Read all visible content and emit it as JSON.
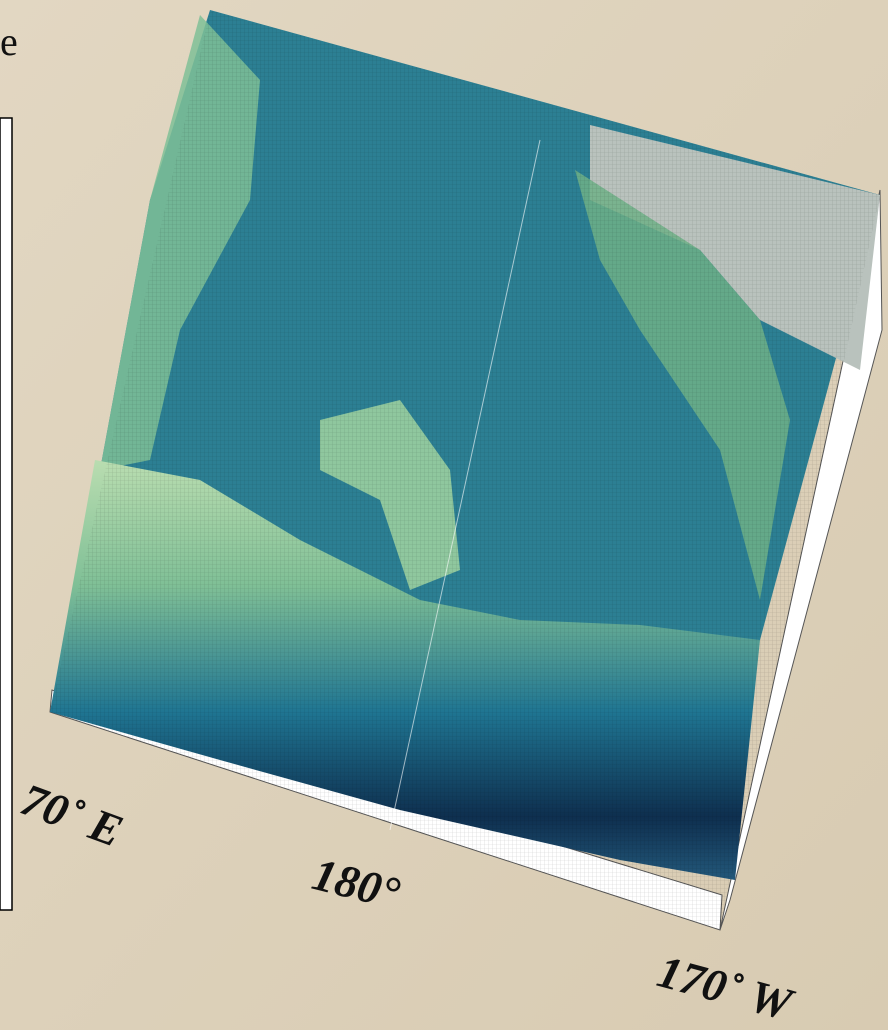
{
  "title_fragment": "e",
  "axis_labels": [
    "70˚ E",
    "180°",
    "170˚ W"
  ]
}
